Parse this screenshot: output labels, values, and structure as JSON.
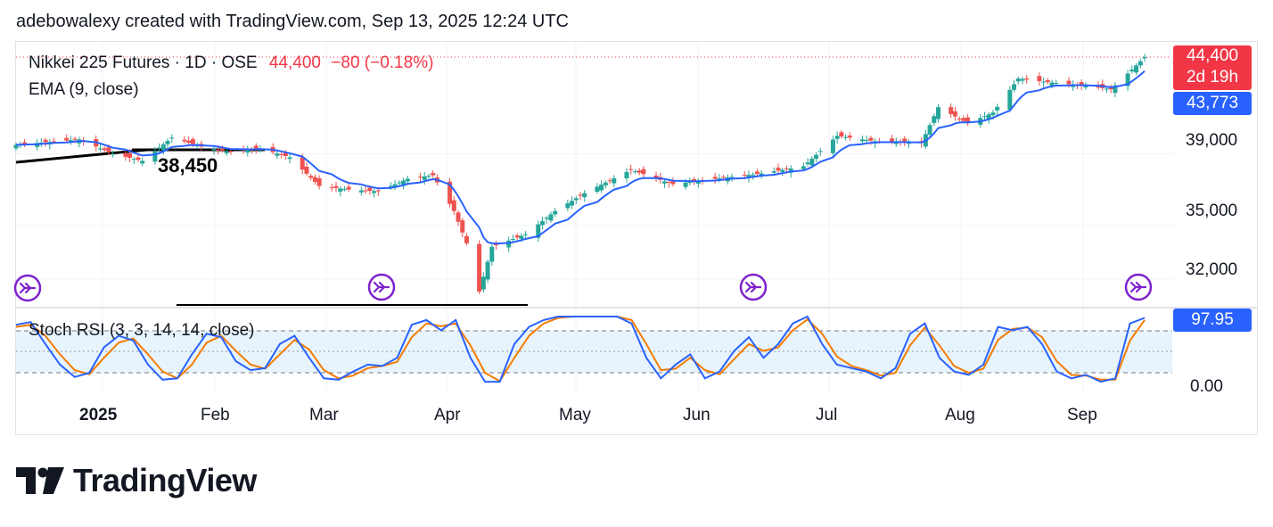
{
  "caption": "adebowalexy created with TradingView.com, Sep 13, 2025 12:24 UTC",
  "legend": {
    "symbol": "Nikkei 225 Futures · 1D · OSE",
    "last": "44,400",
    "change": "−80 (−0.18%)",
    "ema": "EMA (9, close)",
    "stoch": "Stoch RSI (3, 3, 14, 14, close)"
  },
  "price_tags": {
    "last": "44,400",
    "countdown": "2d 19h",
    "ema": "43,773",
    "stoch": "97.95"
  },
  "annotation": "38,450",
  "branding": {
    "logo_text": "TradingView"
  },
  "colors": {
    "up": "#26a69a",
    "down": "#ef5350",
    "ema": "#2962ff",
    "stoch_k": "#2962ff",
    "stoch_d": "#f57c00",
    "band": "#e3f2fd",
    "marker": "#7e22ce"
  },
  "icons": [
    "arrow-marker-icon",
    "tradingview-logo-icon"
  ],
  "chart_data": [
    {
      "type": "candlestick",
      "title": "Nikkei 225 Futures · 1D · OSE",
      "ylim": [
        30600,
        46000
      ],
      "yticks": [
        39000,
        35000,
        32000
      ],
      "ytick_labels": [
        "39,000",
        "35,000",
        "32,000"
      ],
      "xtick_labels": [
        "2025",
        "Feb",
        "Mar",
        "Apr",
        "May",
        "Jun",
        "Jul",
        "Aug",
        "Sep"
      ],
      "x_range": [
        "2024-12-18",
        "2025-09-12"
      ],
      "ema_period": 9,
      "anchors": [
        [
          "2024-12-18",
          39500
        ],
        [
          "2025-01-02",
          39800
        ],
        [
          "2025-01-10",
          39000
        ],
        [
          "2025-01-17",
          38600
        ],
        [
          "2025-01-24",
          39900
        ],
        [
          "2025-01-31",
          39400
        ],
        [
          "2025-02-07",
          39100
        ],
        [
          "2025-02-14",
          39300
        ],
        [
          "2025-02-21",
          38800
        ],
        [
          "2025-02-28",
          37200
        ],
        [
          "2025-03-07",
          37000
        ],
        [
          "2025-03-14",
          36900
        ],
        [
          "2025-03-21",
          37600
        ],
        [
          "2025-03-27",
          37800
        ],
        [
          "2025-04-01",
          35800
        ],
        [
          "2025-04-04",
          34000
        ],
        [
          "2025-04-07",
          31300
        ],
        [
          "2025-04-10",
          33800
        ],
        [
          "2025-04-18",
          34500
        ],
        [
          "2025-04-25",
          35800
        ],
        [
          "2025-05-02",
          36800
        ],
        [
          "2025-05-13",
          38100
        ],
        [
          "2025-05-23",
          37300
        ],
        [
          "2025-06-02",
          37600
        ],
        [
          "2025-06-13",
          37900
        ],
        [
          "2025-06-23",
          38300
        ],
        [
          "2025-07-01",
          40000
        ],
        [
          "2025-07-10",
          39700
        ],
        [
          "2025-07-21",
          39600
        ],
        [
          "2025-07-25",
          41600
        ],
        [
          "2025-08-01",
          40700
        ],
        [
          "2025-08-07",
          41300
        ],
        [
          "2025-08-13",
          43200
        ],
        [
          "2025-08-20",
          43000
        ],
        [
          "2025-08-29",
          42800
        ],
        [
          "2025-09-04",
          42600
        ],
        [
          "2025-09-09",
          43700
        ],
        [
          "2025-09-12",
          44400
        ]
      ],
      "annotation_level": 38450
    },
    {
      "type": "line",
      "title": "Stoch RSI (3, 3, 14, 14, close)",
      "ylim": [
        0,
        100
      ],
      "yticks": [
        0
      ],
      "ytick_labels": [
        "0.00"
      ],
      "bands": [
        20,
        50,
        80
      ],
      "series": [
        {
          "name": "K",
          "values": [
            88,
            92,
            60,
            30,
            12,
            18,
            55,
            72,
            65,
            30,
            8,
            10,
            45,
            75,
            70,
            35,
            22,
            25,
            60,
            72,
            40,
            10,
            8,
            20,
            30,
            28,
            40,
            88,
            95,
            80,
            95,
            40,
            5,
            5,
            60,
            85,
            95,
            100,
            100,
            100,
            100,
            100,
            90,
            40,
            10,
            30,
            45,
            10,
            20,
            50,
            70,
            40,
            60,
            90,
            100,
            60,
            30,
            25,
            20,
            10,
            25,
            75,
            90,
            40,
            20,
            15,
            30,
            85,
            80,
            85,
            60,
            20,
            10,
            15,
            5,
            10,
            90,
            98
          ]
        },
        {
          "name": "D",
          "values": [
            85,
            88,
            72,
            45,
            22,
            16,
            40,
            62,
            68,
            45,
            20,
            10,
            30,
            62,
            72,
            50,
            30,
            24,
            45,
            66,
            52,
            22,
            10,
            14,
            25,
            28,
            34,
            70,
            90,
            86,
            90,
            58,
            18,
            6,
            40,
            72,
            90,
            98,
            100,
            100,
            100,
            100,
            95,
            60,
            22,
            24,
            40,
            22,
            16,
            38,
            60,
            50,
            55,
            80,
            96,
            75,
            42,
            28,
            22,
            14,
            18,
            58,
            84,
            58,
            28,
            18,
            24,
            66,
            82,
            84,
            70,
            35,
            15,
            14,
            8,
            8,
            65,
            95
          ]
        }
      ]
    }
  ]
}
